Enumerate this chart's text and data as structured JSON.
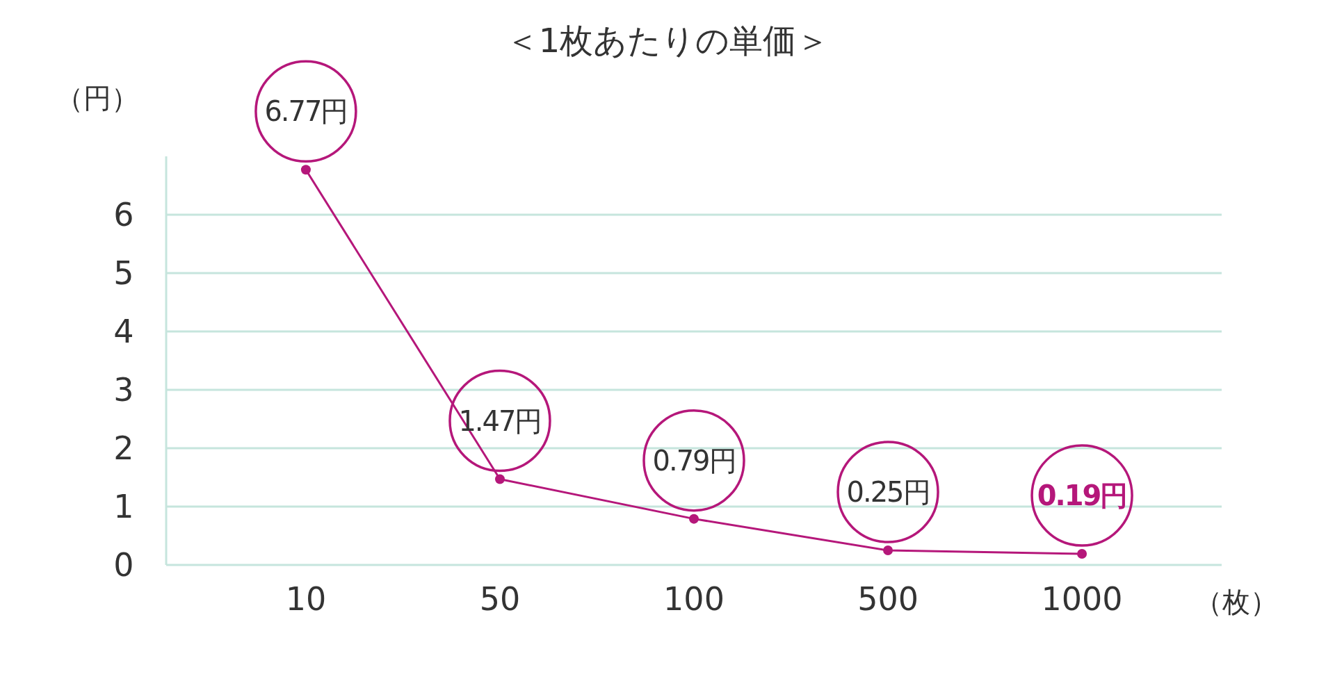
{
  "chart_data": {
    "type": "line",
    "title": "＜1枚あたりの単価＞",
    "ylabel": "（円）",
    "xlabel": "（枚）",
    "categories": [
      "10",
      "50",
      "100",
      "500",
      "1000"
    ],
    "series": [
      {
        "color": "#b5177a",
        "values": [
          6.77,
          1.47,
          0.79,
          0.25,
          0.19
        ],
        "value_labels": [
          "6.77円",
          "1.47円",
          "0.79円",
          "0.25円",
          "0.19円"
        ]
      }
    ],
    "ylim": [
      0,
      7
    ],
    "yticks": [
      0,
      1,
      2,
      3,
      4,
      5,
      6
    ],
    "grid": "y",
    "marker": "circle",
    "line_style": "solid"
  }
}
